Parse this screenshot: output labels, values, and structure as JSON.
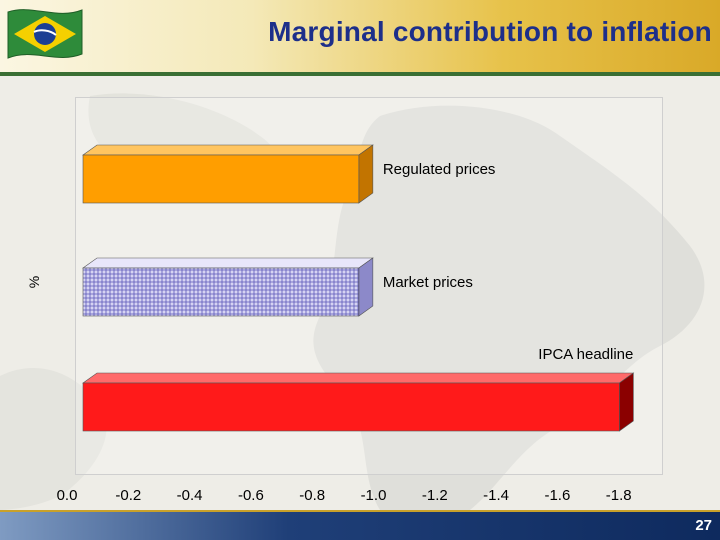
{
  "slide": {
    "title": "Marginal contribution to inflation",
    "page_number": "27"
  },
  "colors": {
    "title": "#1d2f8a",
    "regulated": "#ff9e00",
    "market_fill": "#c9c6ee",
    "market_hatch": "#5b57b8",
    "ipca": "#ff1a1a",
    "footer": "#1f3f78"
  },
  "chart_data": {
    "type": "bar",
    "orientation": "horizontal",
    "categories": [
      "Regulated prices",
      "Market prices",
      "IPCA headline"
    ],
    "values": [
      -0.9,
      -0.9,
      -1.75
    ],
    "ylabel": "%",
    "xlim": [
      0.0,
      -1.8
    ],
    "ticks": [
      "0.0",
      "-0.2",
      "-0.4",
      "-0.6",
      "-0.8",
      "-1.0",
      "-1.2",
      "-1.4",
      "-1.6",
      "-1.8"
    ],
    "grid": false,
    "legend": "none"
  }
}
